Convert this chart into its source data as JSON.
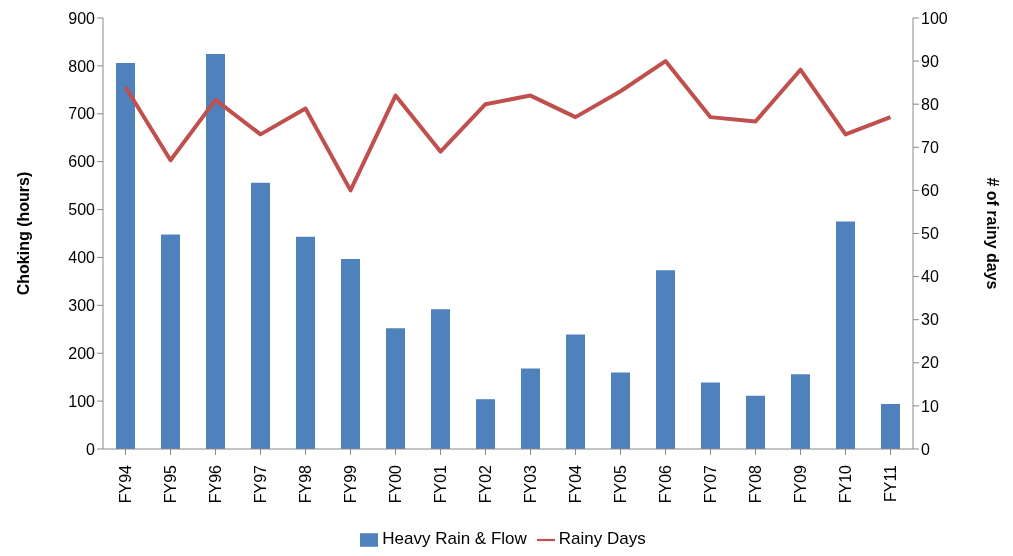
{
  "chart_data": {
    "type": "bar",
    "ylabel": "Choking (hours)",
    "y2label": "# of rainy days",
    "categories": [
      "FY94",
      "FY95",
      "FY96",
      "FY97",
      "FY98",
      "FY99",
      "FY00",
      "FY01",
      "FY02",
      "FY03",
      "FY04",
      "FY05",
      "FY06",
      "FY07",
      "FY08",
      "FY09",
      "FY10",
      "FY11"
    ],
    "series": [
      {
        "name": "Heavy Rain & Flow",
        "color": "#4f81bd",
        "values": [
          806,
          448,
          825,
          556,
          443,
          397,
          252,
          292,
          104,
          168,
          239,
          160,
          373,
          139,
          111,
          156,
          475,
          94
        ]
      },
      {
        "name": "Rainy Days",
        "type": "line",
        "axis": "y2",
        "color": "#c0504d",
        "values": [
          84,
          67,
          81,
          73,
          79,
          60,
          82,
          69,
          80,
          82,
          77,
          83,
          90,
          77,
          76,
          88,
          73,
          77
        ]
      }
    ],
    "ylim": [
      0,
      900
    ],
    "yticks": [
      0,
      100,
      200,
      300,
      400,
      500,
      600,
      700,
      800,
      900
    ],
    "y2lim": [
      0,
      100
    ],
    "y2ticks": [
      0,
      10,
      20,
      30,
      40,
      50,
      60,
      70,
      80,
      90,
      100
    ],
    "grid": false,
    "legend": "bottom",
    "marker": "none",
    "line_style": "solid"
  }
}
